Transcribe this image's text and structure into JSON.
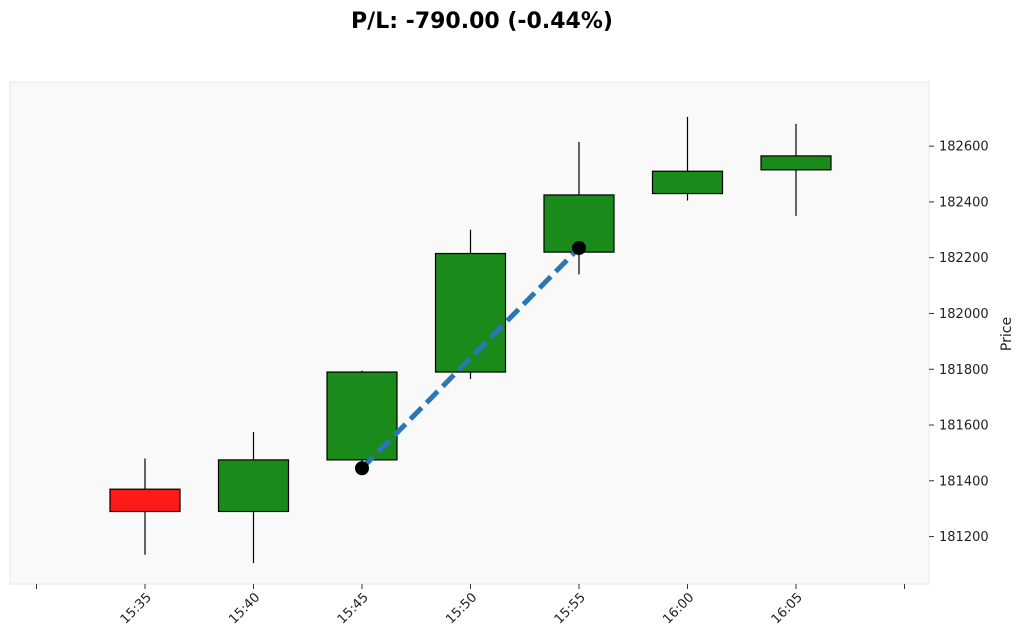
{
  "chart_data": {
    "type": "candlestick",
    "title": "P/L: -790.00 (-0.44%)",
    "xlabel": "",
    "ylabel": "Price",
    "y_axis_side": "right",
    "ylim": [
      181030,
      182830
    ],
    "y_ticks": [
      181200,
      181400,
      181600,
      181800,
      182000,
      182200,
      182400,
      182600
    ],
    "categories": [
      "15:35",
      "15:40",
      "15:45",
      "15:50",
      "15:55",
      "16:00",
      "16:05"
    ],
    "candles": [
      {
        "time": "15:35",
        "open": 181370,
        "high": 181480,
        "low": 181135,
        "close": 181290
      },
      {
        "time": "15:40",
        "open": 181290,
        "high": 181575,
        "low": 181105,
        "close": 181475
      },
      {
        "time": "15:45",
        "open": 181475,
        "high": 181795,
        "low": 181445,
        "close": 181790
      },
      {
        "time": "15:50",
        "open": 181790,
        "high": 182300,
        "low": 181765,
        "close": 182215
      },
      {
        "time": "15:55",
        "open": 182220,
        "high": 182615,
        "low": 182140,
        "close": 182425
      },
      {
        "time": "16:00",
        "open": 182430,
        "high": 182705,
        "low": 182405,
        "close": 182510
      },
      {
        "time": "16:05",
        "open": 182515,
        "high": 182680,
        "low": 182350,
        "close": 182565
      }
    ],
    "trade": {
      "entry": {
        "time": "15:45",
        "price": 181445
      },
      "exit": {
        "time": "15:55",
        "price": 182235
      }
    },
    "colors": {
      "up": "#1a8a1a",
      "down": "#ff1a1a",
      "wick": "#000000",
      "trade_line": "#2a77b4",
      "marker": "#000000",
      "plot_bg": "#f9f9f9"
    },
    "grid": false
  }
}
